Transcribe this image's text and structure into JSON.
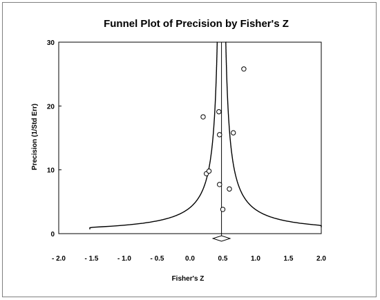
{
  "chart_data": {
    "type": "scatter",
    "title": "Funnel Plot of Precision by Fisher's Z",
    "xlabel": "Fisher's Z",
    "ylabel": "Precision (1/Std Err)",
    "xlim": [
      -2.0,
      2.0
    ],
    "ylim": [
      0,
      30
    ],
    "xticks": [
      -2.0,
      -1.5,
      -1.0,
      -0.5,
      0.0,
      0.5,
      1.0,
      1.5,
      2.0
    ],
    "xtick_labels": [
      "- 2.0",
      "- 1.5",
      "- 1.0",
      "- 0.5",
      "0.0",
      "0.5",
      "1.0",
      "1.5",
      "2.0"
    ],
    "yticks": [
      0,
      10,
      20,
      30
    ],
    "ytick_labels": [
      "0",
      "10",
      "20",
      "30"
    ],
    "pooled_estimate": 0.48,
    "pooled_diamond_halfwidth": 0.13,
    "points": [
      {
        "x": 0.2,
        "y": 18.3
      },
      {
        "x": 0.44,
        "y": 19.1
      },
      {
        "x": 0.45,
        "y": 15.5
      },
      {
        "x": 0.82,
        "y": 25.8
      },
      {
        "x": 0.66,
        "y": 15.8
      },
      {
        "x": 0.25,
        "y": 9.4
      },
      {
        "x": 0.29,
        "y": 9.8
      },
      {
        "x": 0.45,
        "y": 7.7
      },
      {
        "x": 0.6,
        "y": 7.0
      },
      {
        "x": 0.5,
        "y": 3.8
      }
    ],
    "grid": false,
    "legend": "none"
  },
  "colors": {
    "ink": "#000000",
    "frame": "#7f7f7f",
    "background": "#ffffff"
  }
}
